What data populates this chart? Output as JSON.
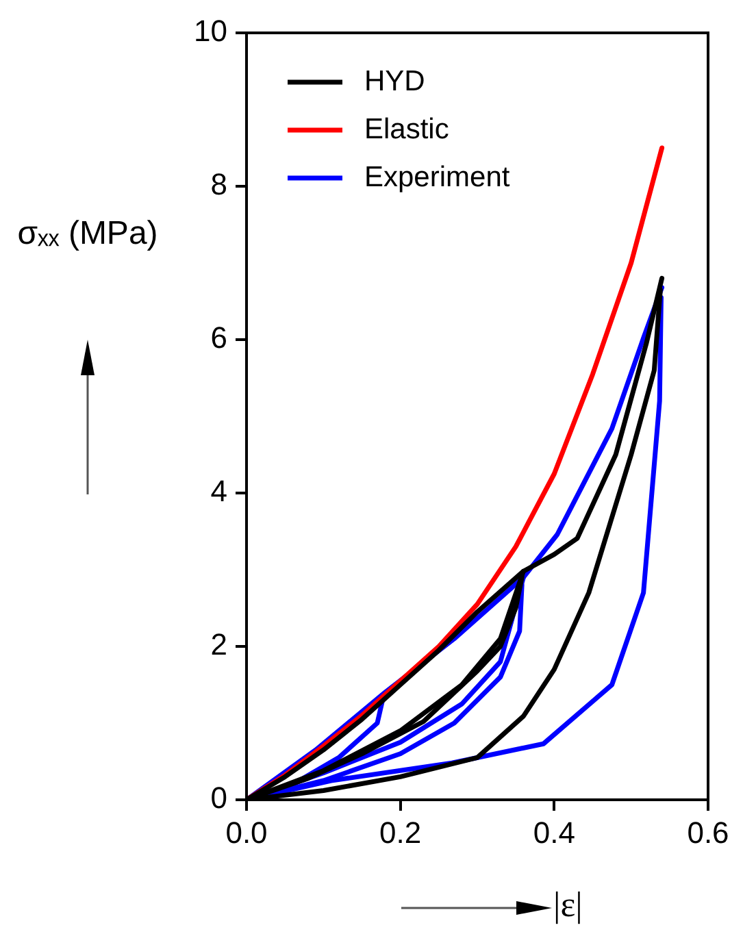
{
  "chart_data": {
    "type": "line",
    "xlabel": "|ε|",
    "ylabel": "σₓₓ (MPa)",
    "xlim": [
      0,
      0.6
    ],
    "xticks": [
      {
        "value": 0,
        "label": "0.0"
      },
      {
        "value": 0.2,
        "label": "0.2"
      },
      {
        "value": 0.4,
        "label": "0.4"
      },
      {
        "value": 0.6,
        "label": "0.6"
      }
    ],
    "ylim": [
      0,
      10
    ],
    "yticks": [
      0,
      2,
      4,
      6,
      8,
      10
    ],
    "grid": false,
    "legend": "top left",
    "marker": "none",
    "line_style": "solid",
    "series": [
      {
        "name": "HYD",
        "color": "#000000",
        "x": [
          0,
          0.05,
          0.1,
          0.15,
          0.2,
          0.25,
          0.3,
          0.36,
          0.4,
          0.43,
          0.48,
          0.52,
          0.54
        ],
        "values": [
          0,
          0.3,
          0.65,
          1.05,
          1.5,
          1.95,
          2.45,
          2.98,
          3.2,
          3.41,
          4.5,
          5.96,
          6.8
        ]
      },
      {
        "color": "#000000",
        "x": [
          0,
          0.08,
          0.15,
          0.23,
          0.3,
          0.33,
          0.35,
          0.358
        ],
        "values": [
          0,
          0.28,
          0.6,
          1.02,
          1.68,
          2.0,
          2.5,
          2.9
        ]
      },
      {
        "color": "#000000",
        "x": [
          0,
          0.1,
          0.2,
          0.28,
          0.33,
          0.36
        ],
        "values": [
          0,
          0.38,
          0.9,
          1.5,
          2.1,
          2.98
        ]
      },
      {
        "color": "#000000",
        "x": [
          0,
          0.1,
          0.2,
          0.3,
          0.36,
          0.4,
          0.445,
          0.5,
          0.53,
          0.538
        ],
        "values": [
          0,
          0.12,
          0.3,
          0.55,
          1.09,
          1.7,
          2.7,
          4.5,
          5.6,
          6.65
        ]
      },
      {
        "name": "Elastic",
        "color": "#ff0000",
        "x": [
          0,
          0.05,
          0.1,
          0.15,
          0.2,
          0.25,
          0.3,
          0.35,
          0.4,
          0.45,
          0.5,
          0.54
        ],
        "values": [
          0,
          0.32,
          0.7,
          1.1,
          1.55,
          2.0,
          2.55,
          3.3,
          4.25,
          5.55,
          7.0,
          8.5
        ]
      },
      {
        "name": "Experiment",
        "color": "#0000ff",
        "x": [
          0,
          0.09,
          0.18,
          0.27,
          0.36,
          0.404,
          0.475,
          0.516,
          0.54
        ],
        "values": [
          0,
          0.65,
          1.4,
          2.1,
          2.9,
          3.46,
          4.84,
          6.02,
          6.68
        ]
      },
      {
        "color": "#0000ff",
        "x": [
          0,
          0.06,
          0.12,
          0.17,
          0.178
        ],
        "values": [
          0,
          0.2,
          0.55,
          1.0,
          1.35
        ]
      },
      {
        "color": "#0000ff",
        "x": [
          0,
          0.1,
          0.2,
          0.27,
          0.33,
          0.355,
          0.358
        ],
        "values": [
          0,
          0.25,
          0.6,
          1.0,
          1.6,
          2.2,
          2.8
        ]
      },
      {
        "color": "#0000ff",
        "x": [
          0,
          0.1,
          0.2,
          0.28,
          0.33,
          0.36
        ],
        "values": [
          0,
          0.35,
          0.75,
          1.25,
          1.8,
          2.9
        ]
      },
      {
        "color": "#0000ff",
        "x": [
          0,
          0.11,
          0.267,
          0.386,
          0.475,
          0.516,
          0.537,
          0.539
        ],
        "values": [
          0,
          0.25,
          0.48,
          0.73,
          1.5,
          2.7,
          5.2,
          6.55
        ]
      }
    ]
  }
}
